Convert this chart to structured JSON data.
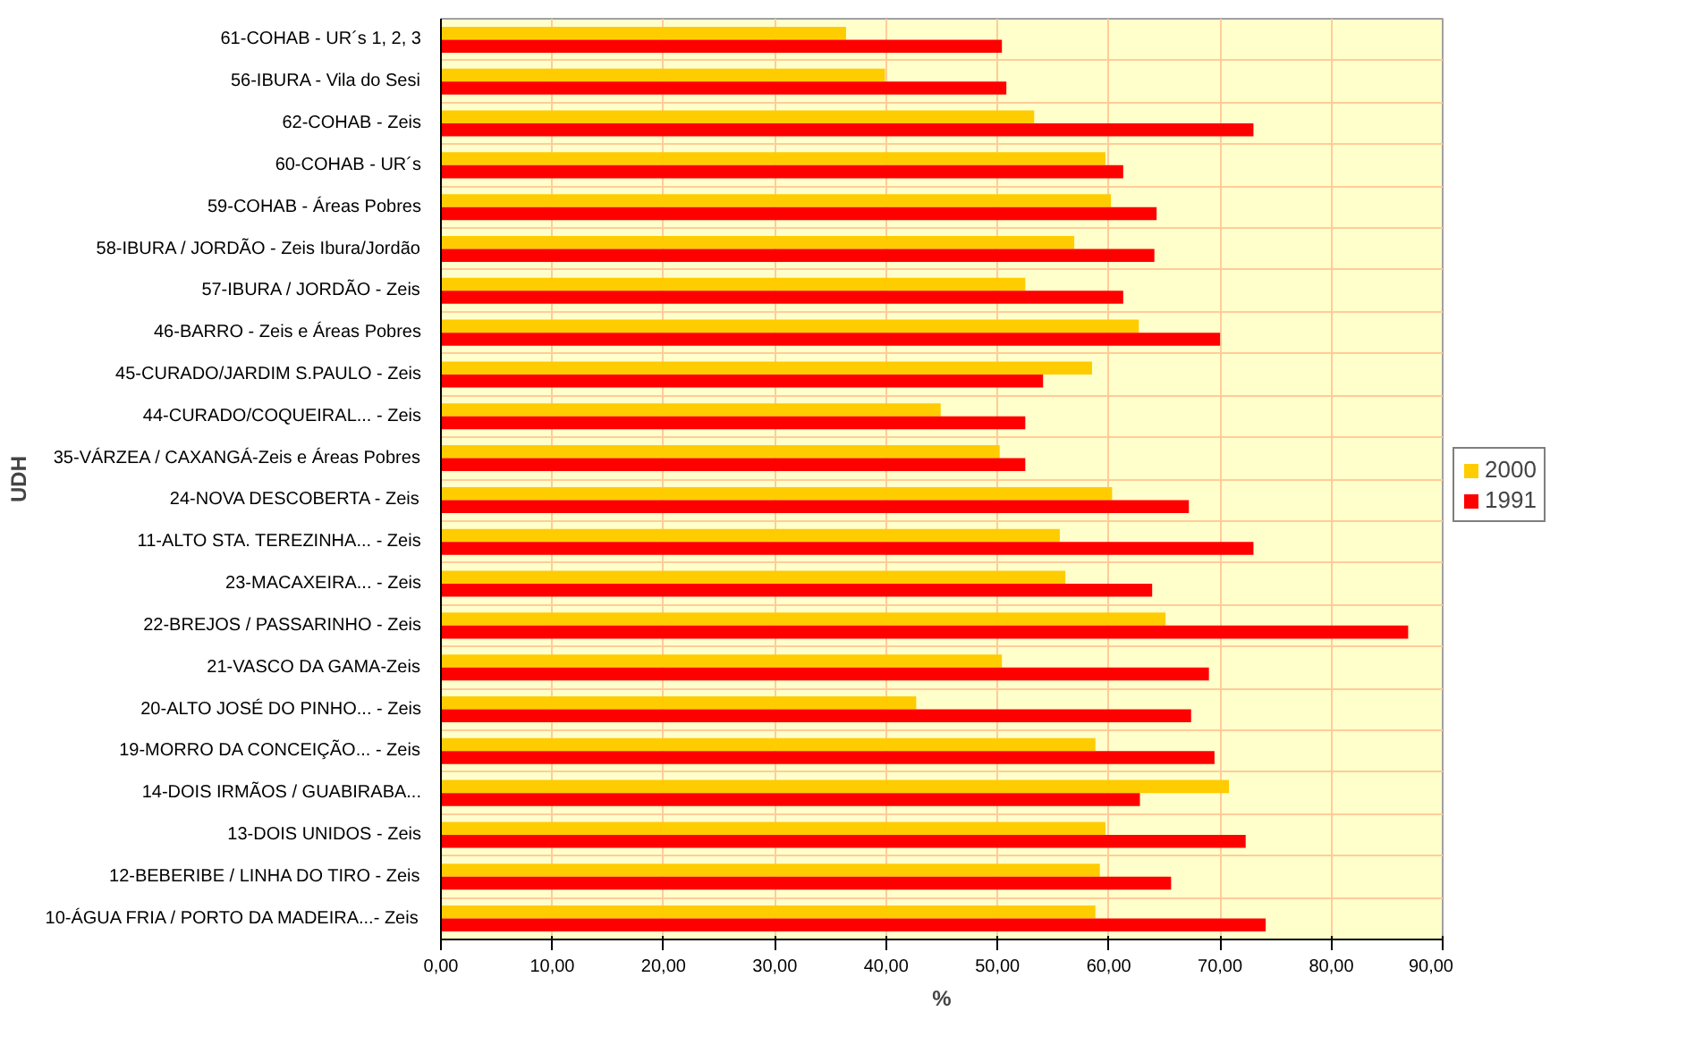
{
  "chart_data": {
    "type": "bar",
    "orientation": "horizontal",
    "xlabel": "%",
    "ylabel": "UDH",
    "categories": [
      "61-COHAB - UR´s 1, 2, 3",
      "56-IBURA - Vila do Sesi",
      "62-COHAB - Zeis",
      "60-COHAB - UR´s",
      "59-COHAB - Áreas Pobres",
      "58-IBURA / JORDÃO - Zeis Ibura/Jordão",
      "57-IBURA / JORDÃO - Zeis",
      "46-BARRO - Zeis e Áreas Pobres",
      "45-CURADO/JARDIM S.PAULO - Zeis",
      "44-CURADO/COQUEIRAL... - Zeis",
      "35-VÁRZEA / CAXANGÁ-Zeis e Áreas Pobres",
      "24-NOVA DESCOBERTA - Zeis",
      "11-ALTO STA. TEREZINHA... - Zeis",
      "23-MACAXEIRA... - Zeis",
      "22-BREJOS / PASSARINHO - Zeis",
      "21-VASCO DA GAMA-Zeis",
      "20-ALTO JOSÉ DO PINHO... - Zeis",
      "19-MORRO DA CONCEIÇÃO... - Zeis",
      "14-DOIS IRMÃOS / GUABIRABA...",
      "13-DOIS UNIDOS - Zeis",
      "12-BEBERIBE / LINHA DO TIRO - Zeis",
      "10-ÁGUA FRIA / PORTO DA MADEIRA...- Zeis"
    ],
    "series": [
      {
        "name": "2000",
        "color": "#ffcc00",
        "values": [
          36.4,
          39.9,
          53.3,
          59.7,
          60.2,
          56.9,
          52.5,
          62.7,
          58.5,
          44.9,
          50.2,
          60.3,
          55.6,
          56.1,
          65.1,
          50.4,
          42.7,
          58.8,
          70.8,
          59.7,
          59.2,
          58.8
        ]
      },
      {
        "name": "1991",
        "color": "#ff0000",
        "values": [
          50.4,
          50.8,
          73.0,
          61.3,
          64.3,
          64.1,
          61.3,
          70.0,
          54.1,
          52.5,
          52.5,
          67.2,
          73.0,
          63.9,
          86.9,
          69.0,
          67.4,
          69.5,
          62.8,
          72.3,
          65.6,
          74.1
        ]
      }
    ],
    "xlim": [
      0,
      90
    ],
    "xticks": [
      {
        "value": 0,
        "label": "0,00"
      },
      {
        "value": 10,
        "label": "10,00"
      },
      {
        "value": 20,
        "label": "20,00"
      },
      {
        "value": 30,
        "label": "30,00"
      },
      {
        "value": 40,
        "label": "40,00"
      },
      {
        "value": 50,
        "label": "50,00"
      },
      {
        "value": 60,
        "label": "60,00"
      },
      {
        "value": 70,
        "label": "70,00"
      },
      {
        "value": 80,
        "label": "80,00"
      },
      {
        "value": 90,
        "label": "90,00"
      }
    ],
    "grid": true,
    "legend": "right"
  }
}
